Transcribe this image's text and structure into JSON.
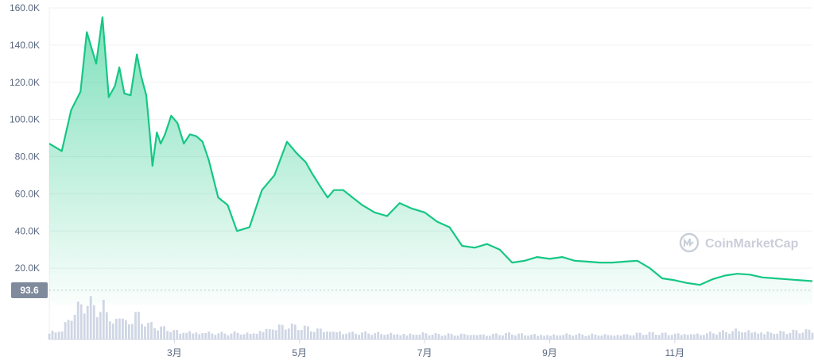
{
  "watermark": {
    "text": "CoinMarketCap",
    "icon": "coinmarketcap-logo-icon",
    "color": "#c9cfd9"
  },
  "colors": {
    "line": "#16c784",
    "fill_top": "#16c784",
    "grid": "#eff2f5",
    "volume": "#cfd6e4",
    "baseline_label_bg": "#808a9d"
  },
  "chart_data": {
    "type": "area",
    "title": "",
    "xlabel": "",
    "ylabel": "",
    "ylim": [
      0,
      160000
    ],
    "grid": true,
    "legend": "none",
    "y_ticks": [
      20000,
      40000,
      60000,
      80000,
      100000,
      120000,
      140000,
      160000
    ],
    "y_tick_labels": [
      "20.0K",
      "40.0K",
      "60.0K",
      "80.0K",
      "100.0K",
      "120.0K",
      "140.0K",
      "160.0K"
    ],
    "x_ticks": [
      {
        "month": 3,
        "label": "3月"
      },
      {
        "month": 5,
        "label": "5月"
      },
      {
        "month": 7,
        "label": "7月"
      },
      {
        "month": 9,
        "label": "9月"
      },
      {
        "month": 11,
        "label": "11月"
      }
    ],
    "x_range_months": [
      1,
      13.2
    ],
    "baseline_label": "93.6",
    "series": [
      {
        "x": [
          1.0,
          1.2,
          1.35,
          1.5,
          1.6,
          1.75,
          1.85,
          1.95,
          2.05,
          2.12,
          2.2,
          2.3,
          2.4,
          2.47,
          2.55,
          2.6,
          2.65,
          2.72,
          2.78,
          2.85,
          2.95,
          3.05,
          3.15,
          3.25,
          3.35,
          3.45,
          3.55,
          3.7,
          3.85,
          4.0,
          4.2,
          4.4,
          4.6,
          4.8,
          4.95,
          5.1,
          5.2,
          5.35,
          5.45,
          5.55,
          5.7,
          5.85,
          6.0,
          6.2,
          6.4,
          6.6,
          6.8,
          7.0,
          7.2,
          7.4,
          7.6,
          7.8,
          8.0,
          8.2,
          8.4,
          8.6,
          8.8,
          9.0,
          9.2,
          9.4,
          9.6,
          9.8,
          10.0,
          10.2,
          10.4,
          10.6,
          10.8,
          11.0,
          11.2,
          11.4,
          11.6,
          11.8,
          12.0,
          12.2,
          12.4,
          12.6,
          12.8,
          13.0,
          13.2
        ],
        "y": [
          87000,
          83000,
          105000,
          115000,
          147000,
          130000,
          155000,
          112000,
          118000,
          128000,
          114000,
          113000,
          135000,
          123000,
          113000,
          95000,
          75000,
          93000,
          87000,
          92000,
          102000,
          98000,
          87000,
          92000,
          91000,
          88000,
          78000,
          58000,
          54000,
          40000,
          42000,
          62000,
          70000,
          88000,
          82000,
          77000,
          71000,
          63000,
          58000,
          62000,
          62000,
          58000,
          54000,
          50000,
          48000,
          55000,
          52000,
          50000,
          45000,
          42000,
          32000,
          31000,
          33000,
          30000,
          23000,
          24000,
          26000,
          25000,
          26000,
          24000,
          23500,
          23000,
          23000,
          23500,
          24000,
          20000,
          14500,
          13500,
          12000,
          11000,
          14000,
          16000,
          17000,
          16500,
          15000,
          14500,
          14000,
          13500,
          13000
        ],
        "volume": [
          20,
          22,
          60,
          78,
          93.6,
          72,
          90,
          55,
          48,
          58,
          50,
          44,
          66,
          52,
          40,
          32,
          36,
          30,
          28,
          26,
          24,
          20,
          18,
          20,
          16,
          18,
          16,
          15,
          14,
          16,
          14,
          22,
          30,
          34,
          30,
          28,
          26,
          24,
          22,
          20,
          18,
          16,
          16,
          15,
          14,
          14,
          13,
          15,
          12,
          12,
          13,
          12,
          12,
          13,
          14,
          12,
          12,
          11,
          12,
          12,
          11,
          12,
          11,
          12,
          14,
          15,
          14,
          14,
          14,
          13,
          16,
          18,
          22,
          20,
          18,
          17,
          18,
          20,
          22
        ]
      }
    ]
  }
}
